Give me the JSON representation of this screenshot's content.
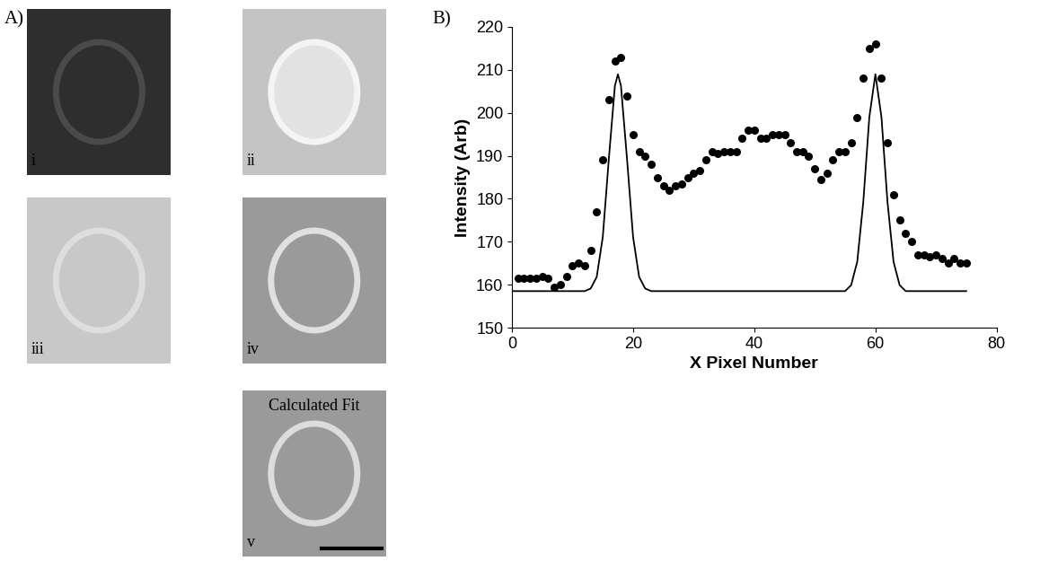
{
  "panel_a": {
    "label": "A)",
    "images": [
      {
        "label": "i"
      },
      {
        "label": "ii"
      },
      {
        "label": "iii"
      },
      {
        "label": "iv"
      },
      {
        "label": "v",
        "title": "Calculated Fit"
      }
    ]
  },
  "chart_data": {
    "type": "scatter",
    "panel_label": "B)",
    "x_label": "X Pixel Number",
    "y_label": "Intensity (Arb)",
    "xlim": [
      0,
      80
    ],
    "xticks": [
      0,
      20,
      40,
      60,
      80
    ],
    "ylim": [
      150,
      220
    ],
    "yticks": [
      150,
      160,
      170,
      180,
      190,
      200,
      210,
      220
    ],
    "grid": false,
    "series": [
      {
        "type": "scatter",
        "color": "#000000",
        "marker": "o",
        "x": [
          1,
          2,
          3,
          4,
          5,
          6,
          7,
          8,
          9,
          10,
          11,
          12,
          13,
          14,
          15,
          16,
          17,
          18,
          19,
          20,
          21,
          22,
          23,
          24,
          25,
          26,
          27,
          28,
          29,
          30,
          31,
          32,
          33,
          34,
          35,
          36,
          37,
          38,
          39,
          40,
          41,
          42,
          43,
          44,
          45,
          46,
          47,
          48,
          49,
          50,
          51,
          52,
          53,
          54,
          55,
          56,
          57,
          58,
          59,
          60,
          61,
          62,
          63,
          64,
          65,
          66,
          67,
          68,
          69,
          70,
          71,
          72,
          73,
          74,
          75
        ],
        "values": [
          161.5,
          161.5,
          161.5,
          161.5,
          162,
          161.5,
          159.5,
          160,
          162,
          164.5,
          165,
          164.5,
          168,
          177,
          189,
          203,
          212,
          213,
          204,
          195,
          191,
          190,
          188,
          185,
          183,
          182,
          183,
          183.5,
          185,
          186,
          186.5,
          189,
          191,
          190.5,
          191,
          191,
          191,
          194,
          196,
          196,
          194,
          194,
          195,
          195,
          195,
          193,
          191,
          191,
          190,
          187,
          184.5,
          186,
          189,
          191,
          191,
          193,
          199,
          208,
          215,
          216,
          208,
          193,
          181,
          175,
          172,
          170,
          167,
          167,
          166.5,
          167,
          166,
          165,
          166,
          165,
          165
        ]
      },
      {
        "type": "line",
        "color": "#000000",
        "line_style": "solid",
        "x": [
          0,
          12,
          13,
          14,
          15,
          16,
          17,
          17.5,
          18,
          19,
          20,
          21,
          22,
          23,
          55,
          56,
          57,
          58,
          59,
          60,
          61,
          62,
          63,
          64,
          65,
          75
        ],
        "values": [
          158.5,
          158.5,
          159.1,
          161.8,
          171.1,
          189.3,
          206.3,
          209,
          206.3,
          189.3,
          171.1,
          161.8,
          159.1,
          158.5,
          158.5,
          159.9,
          165.3,
          179.2,
          199,
          209,
          199,
          179.2,
          165.3,
          159.9,
          158.5,
          158.5
        ]
      }
    ]
  }
}
